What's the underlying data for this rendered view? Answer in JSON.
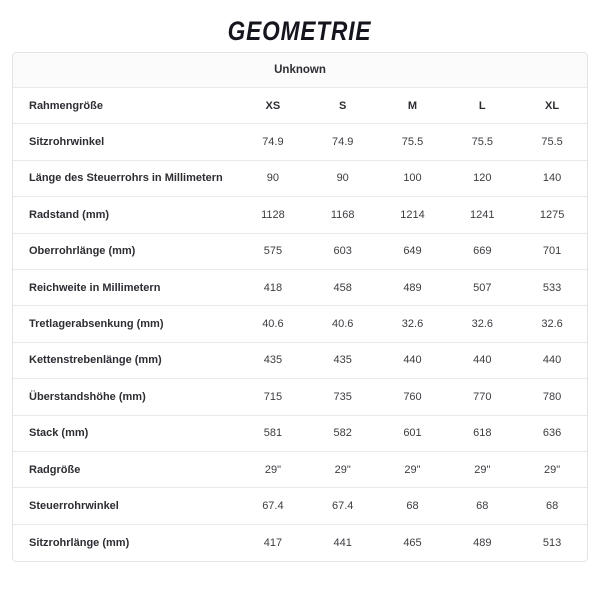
{
  "page": {
    "title": "GEOMETRIE"
  },
  "table": {
    "group_header": "Unknown",
    "size_row": {
      "label": "Rahmengröße",
      "values": [
        "XS",
        "S",
        "M",
        "L",
        "XL"
      ]
    },
    "rows": [
      {
        "label": "Sitzrohrwinkel",
        "values": [
          "74.9",
          "74.9",
          "75.5",
          "75.5",
          "75.5"
        ]
      },
      {
        "label": "Länge des Steuerrohrs in Millimetern",
        "values": [
          "90",
          "90",
          "100",
          "120",
          "140"
        ]
      },
      {
        "label": "Radstand (mm)",
        "values": [
          "1128",
          "1168",
          "1214",
          "1241",
          "1275"
        ]
      },
      {
        "label": "Oberrohrlänge (mm)",
        "values": [
          "575",
          "603",
          "649",
          "669",
          "701"
        ]
      },
      {
        "label": "Reichweite in Millimetern",
        "values": [
          "418",
          "458",
          "489",
          "507",
          "533"
        ]
      },
      {
        "label": "Tretlagerabsenkung (mm)",
        "values": [
          "40.6",
          "40.6",
          "32.6",
          "32.6",
          "32.6"
        ]
      },
      {
        "label": "Kettenstrebenlänge (mm)",
        "values": [
          "435",
          "435",
          "440",
          "440",
          "440"
        ]
      },
      {
        "label": "Überstandshöhe (mm)",
        "values": [
          "715",
          "735",
          "760",
          "770",
          "780"
        ]
      },
      {
        "label": "Stack (mm)",
        "values": [
          "581",
          "582",
          "601",
          "618",
          "636"
        ]
      },
      {
        "label": "Radgröße",
        "values": [
          "29\"",
          "29\"",
          "29\"",
          "29\"",
          "29\""
        ]
      },
      {
        "label": "Steuerrohrwinkel",
        "values": [
          "67.4",
          "67.4",
          "68",
          "68",
          "68"
        ]
      },
      {
        "label": "Sitzrohrlänge (mm)",
        "values": [
          "417",
          "441",
          "465",
          "489",
          "513"
        ]
      }
    ]
  },
  "colors": {
    "title": "#15151e",
    "label_text": "#2d2d33",
    "value_text": "#3c3c42",
    "outer_border": "#e3e3e5",
    "row_divider": "#e9e9eb",
    "group_header_bg": "#fbfbfc"
  }
}
